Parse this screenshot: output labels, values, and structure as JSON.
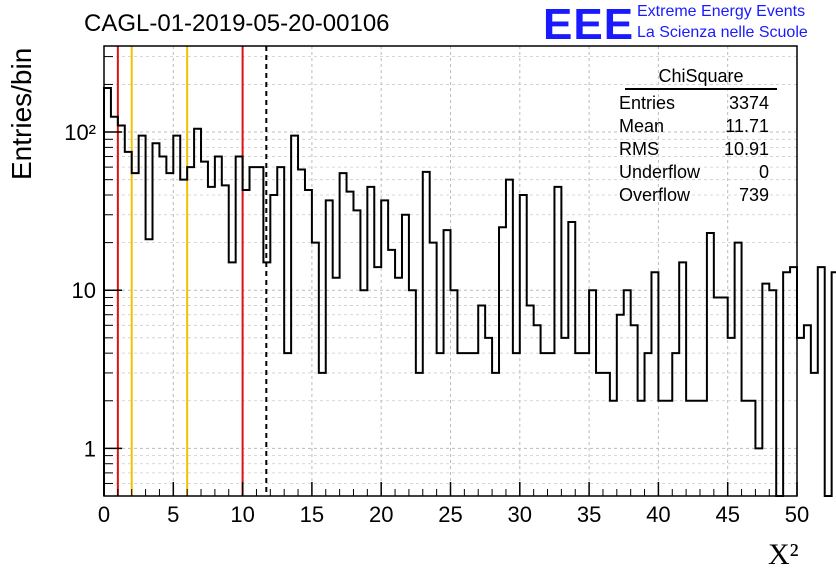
{
  "header": {
    "title": "CAGL-01-2019-05-20-00106",
    "logo_text": "EEE",
    "logo_line1": "Extreme Energy Events",
    "logo_line2": "La Scienza nelle Scuole"
  },
  "stats": {
    "title": "ChiSquare",
    "rows": [
      {
        "label": "Entries",
        "value": "3374"
      },
      {
        "label": "Mean",
        "value": "11.71"
      },
      {
        "label": "RMS",
        "value": "10.91"
      },
      {
        "label": "Underflow",
        "value": "0"
      },
      {
        "label": "Overflow",
        "value": "739"
      }
    ]
  },
  "chart_data": {
    "type": "bar",
    "title": "CAGL-01-2019-05-20-00106",
    "xlabel": "X²",
    "ylabel": "Entries/bin",
    "xlim": [
      0,
      50
    ],
    "ylim": [
      0.5,
      350
    ],
    "log_y": true,
    "grid": true,
    "bin_width": 0.5,
    "x_ticks": [
      "0",
      "5",
      "10",
      "15",
      "20",
      "25",
      "30",
      "35",
      "40",
      "45",
      "50"
    ],
    "y_ticks": [
      "1",
      "10",
      "10²"
    ],
    "values": [
      190,
      125,
      110,
      75,
      55,
      95,
      21,
      85,
      70,
      55,
      95,
      50,
      60,
      105,
      65,
      45,
      70,
      46,
      15,
      70,
      43,
      60,
      60,
      15,
      40,
      60,
      4,
      95,
      58,
      43,
      20,
      3,
      37,
      12,
      55,
      42,
      32,
      10,
      45,
      14,
      37,
      18,
      12,
      30,
      10,
      3,
      56,
      20,
      4,
      24,
      10,
      4,
      4,
      4,
      8,
      5,
      3,
      25,
      50,
      4,
      40,
      8,
      6,
      4,
      4,
      45,
      5,
      27,
      4,
      4,
      10,
      3,
      3,
      2,
      7,
      10,
      6,
      2,
      4,
      13,
      2,
      2,
      4,
      15,
      2,
      2,
      2,
      23,
      9,
      9,
      5,
      20,
      2,
      2,
      1,
      11,
      10,
      0,
      13,
      14,
      5,
      6,
      3,
      14,
      0,
      13,
      8,
      0,
      12,
      0.8,
      7,
      9,
      15,
      1,
      1,
      1,
      1,
      1,
      1,
      1,
      14,
      11,
      4,
      1,
      3,
      1,
      1,
      4,
      1,
      2,
      4,
      12,
      3,
      7,
      7,
      7,
      5,
      2,
      4,
      3,
      2,
      12,
      13,
      6,
      8,
      4,
      3,
      1,
      1,
      1,
      1,
      1,
      1,
      1,
      1,
      1,
      1,
      1,
      1,
      1,
      1,
      1,
      1,
      1,
      1,
      1,
      1,
      1,
      1,
      1,
      1,
      1,
      1,
      1,
      1,
      1,
      1,
      1,
      1,
      1,
      1,
      1,
      1,
      1,
      1,
      1,
      1,
      1,
      1,
      1,
      1,
      1,
      1,
      1,
      1,
      1,
      1,
      1,
      1,
      1,
      1,
      1,
      1,
      1,
      1,
      1,
      1,
      1,
      1,
      1,
      1,
      1,
      1,
      1,
      1,
      1,
      1,
      1,
      1,
      1,
      1,
      1,
      1,
      1,
      1,
      1,
      1,
      1,
      1,
      1,
      1,
      1,
      1,
      1,
      1,
      1,
      1,
      1,
      1,
      1
    ],
    "markers": [
      {
        "x": 1,
        "color": "#dd1111"
      },
      {
        "x": 2,
        "color": "#f2c200"
      },
      {
        "x": 6,
        "color": "#f2c200"
      },
      {
        "x": 10,
        "color": "#dd1111"
      },
      {
        "x": 11.71,
        "color": "#000000",
        "dashed": true
      }
    ]
  }
}
